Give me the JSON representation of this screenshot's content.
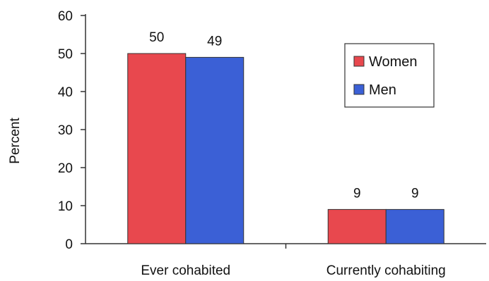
{
  "chart_data": {
    "type": "bar",
    "title": "",
    "xlabel": "",
    "ylabel": "Percent",
    "categories": [
      "Ever cohabited",
      "Currently cohabiting"
    ],
    "series": [
      {
        "name": "Women",
        "values": [
          50,
          9
        ],
        "labels": [
          "50",
          "9"
        ],
        "color": "#e8484e"
      },
      {
        "name": "Men",
        "values": [
          49,
          9
        ],
        "labels": [
          "49",
          "9"
        ],
        "color": "#3b60d6"
      }
    ],
    "ylim": [
      0,
      60
    ],
    "yticks": [
      "0",
      "10",
      "20",
      "30",
      "40",
      "50",
      "60"
    ],
    "grid": false,
    "legend": "right"
  }
}
